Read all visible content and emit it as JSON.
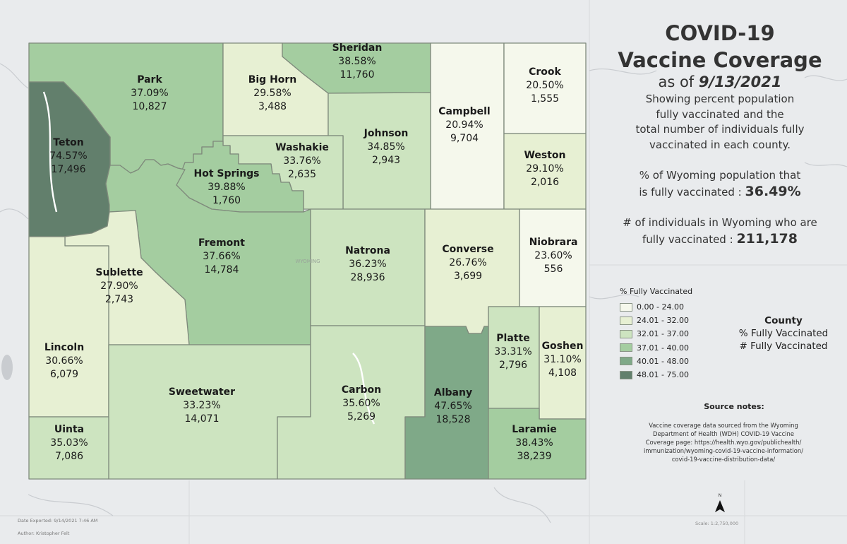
{
  "title": {
    "line1": "COVID-19",
    "line2": "Vaccine Coverage",
    "as_of_prefix": "as of",
    "as_of_date": "9/13/2021"
  },
  "description": [
    "Showing percent population",
    "fully vaccinated and the",
    "total number of individuals fully",
    "vaccinated in each county."
  ],
  "statewide": {
    "pct_line1": "% of Wyoming population that",
    "pct_line2_prefix": "is fully vaccinated :",
    "pct_value": "36.49%",
    "count_line1": "# of individuals in Wyoming who are",
    "count_line2_prefix": "fully vaccinated :",
    "count_value": "211,178"
  },
  "legend": {
    "title": "% Fully Vaccinated",
    "classes": [
      {
        "label": "0.00 - 24.00",
        "color": "#f5f8ec"
      },
      {
        "label": "24.01 - 32.00",
        "color": "#e7f0d3"
      },
      {
        "label": "32.01 - 37.00",
        "color": "#cde4c0"
      },
      {
        "label": "37.01 - 40.00",
        "color": "#a4cda0"
      },
      {
        "label": "40.01 - 48.00",
        "color": "#7fa988"
      },
      {
        "label": "48.01 - 75.00",
        "color": "#627f6c"
      }
    ]
  },
  "key": {
    "title": "County",
    "line2": "% Fully Vaccinated",
    "line3": "# Fully Vaccinated"
  },
  "source": {
    "title": "Source notes:",
    "lines": [
      "Vaccine coverage data sourced from the Wyoming",
      "Department of Health (WDH) COVID-19 Vaccine",
      "Coverage page: https://health.wyo.gov/publichealth/",
      "immunization/wyoming-covid-19-vaccine-information/",
      "covid-19-vaccine-distribution-data/"
    ]
  },
  "footer": {
    "export_date": "Date Exported: 9/14/2021 7:46 AM",
    "author": "Author: Kristopher Felt",
    "scale": "Scale: 1:2,750,000",
    "north": "N"
  },
  "map_label": "WYOMING",
  "counties": [
    {
      "name": "Park",
      "pct": "37.09%",
      "count": "10,827",
      "class": 3
    },
    {
      "name": "Big Horn",
      "pct": "29.58%",
      "count": "3,488",
      "class": 1
    },
    {
      "name": "Sheridan",
      "pct": "38.58%",
      "count": "11,760",
      "class": 3
    },
    {
      "name": "Campbell",
      "pct": "20.94%",
      "count": "9,704",
      "class": 0
    },
    {
      "name": "Crook",
      "pct": "20.50%",
      "count": "1,555",
      "class": 0
    },
    {
      "name": "Weston",
      "pct": "29.10%",
      "count": "2,016",
      "class": 1
    },
    {
      "name": "Teton",
      "pct": "74.57%",
      "count": "17,496",
      "class": 5
    },
    {
      "name": "Johnson",
      "pct": "34.85%",
      "count": "2,943",
      "class": 2
    },
    {
      "name": "Washakie",
      "pct": "33.76%",
      "count": "2,635",
      "class": 2
    },
    {
      "name": "Hot Springs",
      "pct": "39.88%",
      "count": "1,760",
      "class": 3
    },
    {
      "name": "Fremont",
      "pct": "37.66%",
      "count": "14,784",
      "class": 3
    },
    {
      "name": "Natrona",
      "pct": "36.23%",
      "count": "28,936",
      "class": 2
    },
    {
      "name": "Converse",
      "pct": "26.76%",
      "count": "3,699",
      "class": 1
    },
    {
      "name": "Niobrara",
      "pct": "23.60%",
      "count": "556",
      "class": 0
    },
    {
      "name": "Sublette",
      "pct": "27.90%",
      "count": "2,743",
      "class": 1
    },
    {
      "name": "Lincoln",
      "pct": "30.66%",
      "count": "6,079",
      "class": 1
    },
    {
      "name": "Platte",
      "pct": "33.31%",
      "count": "2,796",
      "class": 2
    },
    {
      "name": "Goshen",
      "pct": "31.10%",
      "count": "4,108",
      "class": 1
    },
    {
      "name": "Sweetwater",
      "pct": "33.23%",
      "count": "14,071",
      "class": 2
    },
    {
      "name": "Carbon",
      "pct": "35.60%",
      "count": "5,269",
      "class": 2
    },
    {
      "name": "Albany",
      "pct": "47.65%",
      "count": "18,528",
      "class": 4
    },
    {
      "name": "Uinta",
      "pct": "35.03%",
      "count": "7,086",
      "class": 2
    },
    {
      "name": "Laramie",
      "pct": "38.43%",
      "count": "38,239",
      "class": 3
    }
  ]
}
